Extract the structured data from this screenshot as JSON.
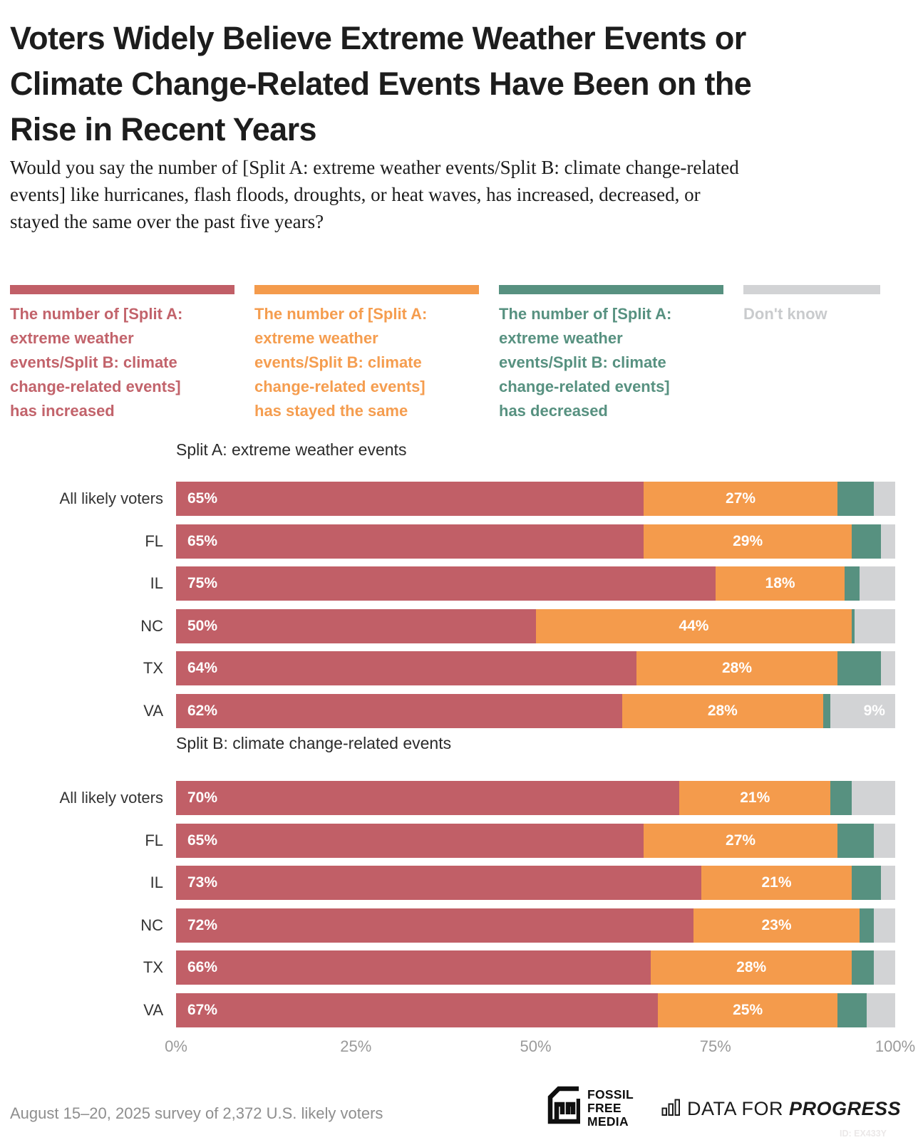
{
  "header": {
    "title_lines": [
      "Voters Widely Believe Extreme Weather Events or",
      "Climate Change-Related Events Have Been on the",
      "Rise in Recent Years"
    ],
    "subtitle_lines": [
      "Would you say the number of [Split A: extreme weather events/Split B: climate change-related",
      "events] like hurricanes, flash floods, droughts, or heat waves, has increased, decreased, or",
      "stayed the same over the past five years?"
    ]
  },
  "legend": {
    "items": [
      {
        "key": "increased",
        "color": "#c15f67",
        "label": "The number of [Split A: extreme weather events/Split B: climate change-related events] has increased"
      },
      {
        "key": "stayed_same",
        "color": "#f49b4c",
        "label": "The number of [Split A: extreme weather events/Split B: climate change-related events] has stayed the same"
      },
      {
        "key": "decreased",
        "color": "#579180",
        "label": "The number of [Split A: extreme weather events/Split B: climate change-related events] has decreased"
      },
      {
        "key": "dont_know",
        "color": "#d2d3d5",
        "label": "Don't know"
      }
    ]
  },
  "chart_data": {
    "type": "bar",
    "stacked": true,
    "orientation": "horizontal",
    "unit": "%",
    "xlim": [
      0,
      100
    ],
    "x_ticks": [
      "0%",
      "25%",
      "50%",
      "75%",
      "100%"
    ],
    "label_threshold_pct": 9,
    "series_names": [
      "has increased",
      "has stayed the same",
      "has decreased",
      "Don't know"
    ],
    "colors": {
      "increased": "#c15f67",
      "stayed_same": "#f49b4c",
      "decreased": "#579180",
      "dont_know": "#d2d3d5"
    },
    "groups": [
      {
        "label": "Split A: extreme weather events",
        "rows": [
          {
            "label": "All likely voters",
            "increased": 65,
            "stayed_same": 27,
            "decreased": 5,
            "dont_know": 3
          },
          {
            "label": "FL",
            "increased": 65,
            "stayed_same": 29,
            "decreased": 4,
            "dont_know": 2
          },
          {
            "label": "IL",
            "increased": 75,
            "stayed_same": 18,
            "decreased": 2,
            "dont_know": 5
          },
          {
            "label": "NC",
            "increased": 50,
            "stayed_same": 44,
            "decreased": 0.4,
            "dont_know": 5.6
          },
          {
            "label": "TX",
            "increased": 64,
            "stayed_same": 28,
            "decreased": 6,
            "dont_know": 2
          },
          {
            "label": "VA",
            "increased": 62,
            "stayed_same": 28,
            "decreased": 1,
            "dont_know": 9
          }
        ]
      },
      {
        "label": "Split B: climate change-related events",
        "rows": [
          {
            "label": "All likely voters",
            "increased": 70,
            "stayed_same": 21,
            "decreased": 3,
            "dont_know": 6
          },
          {
            "label": "FL",
            "increased": 65,
            "stayed_same": 27,
            "decreased": 5,
            "dont_know": 3
          },
          {
            "label": "IL",
            "increased": 73,
            "stayed_same": 21,
            "decreased": 4,
            "dont_know": 2
          },
          {
            "label": "NC",
            "increased": 72,
            "stayed_same": 23,
            "decreased": 2,
            "dont_know": 3
          },
          {
            "label": "TX",
            "increased": 66,
            "stayed_same": 28,
            "decreased": 3,
            "dont_know": 3
          },
          {
            "label": "VA",
            "increased": 67,
            "stayed_same": 25,
            "decreased": 4,
            "dont_know": 4
          }
        ]
      }
    ]
  },
  "footer": {
    "survey_note": "August 15–20, 2025 survey of 2,372 U.S. likely voters",
    "ffm_lines": [
      "FOSSIL",
      "FREE",
      "MEDIA"
    ],
    "dfp_light": "DATA FOR ",
    "dfp_bold": "PROGRESS",
    "chart_id": "ID: EX433Y"
  }
}
